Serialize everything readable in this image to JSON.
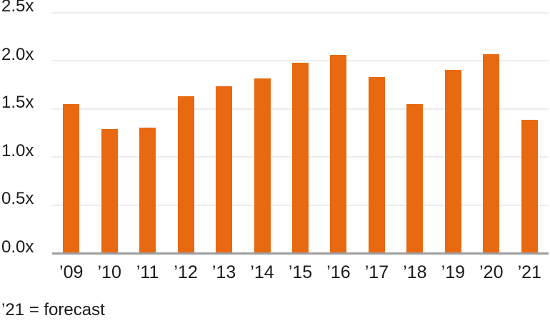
{
  "chart_data": {
    "type": "bar",
    "title": "",
    "xlabel": "",
    "ylabel": "",
    "categories": [
      "’09",
      "’10",
      "’11",
      "’12",
      "’13",
      "’14",
      "’15",
      "’16",
      "’17",
      "’18",
      "’19",
      "’20",
      "’21"
    ],
    "values": [
      1.55,
      1.29,
      1.31,
      1.63,
      1.74,
      1.82,
      1.98,
      2.06,
      1.83,
      1.55,
      1.91,
      2.07,
      1.39
    ],
    "y_tick_labels": [
      "0.0x",
      "0.5x",
      "1.0x",
      "1.5x",
      "2.0x",
      "2.5x"
    ],
    "y_tick_step": 0.5,
    "ylim": [
      0,
      2.5
    ],
    "grid": true,
    "legend": false,
    "footnote": "’21 = forecast",
    "colors": {
      "bar": "#E8690F",
      "gridline": "#ECECEC",
      "axis_line": "#9E9E9E",
      "text": "#1A1A1A",
      "background": "#FFFFFF"
    }
  }
}
